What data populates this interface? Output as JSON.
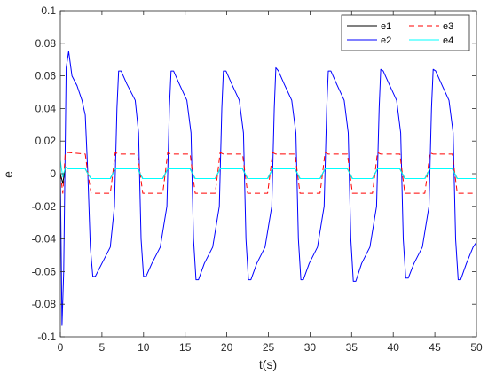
{
  "chart_data": {
    "type": "line",
    "title": "",
    "xlabel": "t(s)",
    "ylabel": "e",
    "xlim": [
      0,
      50
    ],
    "ylim": [
      -0.1,
      0.1
    ],
    "xticks": [
      "0",
      "5",
      "10",
      "15",
      "20",
      "25",
      "30",
      "35",
      "40",
      "45",
      "50"
    ],
    "yticks": [
      "-0.1",
      "-0.08",
      "-0.06",
      "-0.04",
      "-0.02",
      "0",
      "0.02",
      "0.04",
      "0.06",
      "0.08",
      "0.1"
    ],
    "grid": false,
    "legend_position": "top-right",
    "period_s": 6.28,
    "series": [
      {
        "name": "e1",
        "color": "#000000",
        "style": "solid",
        "x": [
          0,
          0.3,
          0.6,
          1.0,
          3.0,
          3.3,
          3.7,
          4.2,
          6.0,
          6.3,
          6.6,
          7.0,
          9.3,
          9.6,
          9.9,
          10.3,
          12.3,
          12.6,
          12.9,
          13.3,
          15.6,
          15.9,
          16.2,
          16.6,
          18.6,
          18.9,
          19.2,
          19.6,
          21.9,
          22.2,
          22.5,
          22.9,
          24.9,
          25.2,
          25.5,
          25.9,
          28.2,
          28.5,
          28.8,
          29.2,
          31.2,
          31.5,
          31.8,
          32.2,
          34.5,
          34.8,
          35.1,
          35.5,
          37.5,
          37.8,
          38.1,
          38.5,
          40.8,
          41.1,
          41.4,
          41.8,
          43.8,
          44.1,
          44.4,
          44.8,
          47.1,
          47.4,
          47.7,
          48.1,
          50
        ],
        "y": [
          0,
          -0.006,
          0.004,
          0.003,
          0.003,
          0.0,
          -0.003,
          -0.003,
          -0.003,
          0.0,
          0.003,
          0.003,
          0.003,
          0.0,
          -0.003,
          -0.003,
          -0.003,
          0.0,
          0.003,
          0.003,
          0.003,
          0.0,
          -0.003,
          -0.003,
          -0.003,
          0.0,
          0.003,
          0.003,
          0.003,
          0.0,
          -0.003,
          -0.003,
          -0.003,
          0.0,
          0.003,
          0.003,
          0.003,
          0.0,
          -0.003,
          -0.003,
          -0.003,
          0.0,
          0.003,
          0.003,
          0.003,
          0.0,
          -0.003,
          -0.003,
          -0.003,
          0.0,
          0.003,
          0.003,
          0.003,
          0.0,
          -0.003,
          -0.003,
          -0.003,
          0.0,
          0.003,
          0.003,
          0.003,
          0.0,
          -0.003,
          -0.003,
          -0.003
        ]
      },
      {
        "name": "e2",
        "color": "#0000ff",
        "style": "solid",
        "x": [
          0,
          0.2,
          0.4,
          0.7,
          1.0,
          1.4,
          2.0,
          2.6,
          3.0,
          3.3,
          3.6,
          3.9,
          4.2,
          5.0,
          6.0,
          6.5,
          6.8,
          7.0,
          7.3,
          8.0,
          9.0,
          9.4,
          9.7,
          10.0,
          10.3,
          11.0,
          12.0,
          12.8,
          13.1,
          13.3,
          13.6,
          14.3,
          15.2,
          15.7,
          16.0,
          16.3,
          16.6,
          17.3,
          18.3,
          19.1,
          19.4,
          19.6,
          19.9,
          20.6,
          21.5,
          22.0,
          22.3,
          22.6,
          22.9,
          23.6,
          24.6,
          25.4,
          25.7,
          25.9,
          26.2,
          26.9,
          27.8,
          28.3,
          28.6,
          28.9,
          29.2,
          29.9,
          30.9,
          31.7,
          32.0,
          32.2,
          32.5,
          33.2,
          34.1,
          34.6,
          34.9,
          35.2,
          35.5,
          36.2,
          37.2,
          38.0,
          38.3,
          38.5,
          38.8,
          39.5,
          40.4,
          40.9,
          41.2,
          41.5,
          41.8,
          42.5,
          43.5,
          44.3,
          44.6,
          44.8,
          45.1,
          45.8,
          46.7,
          47.2,
          47.5,
          47.8,
          48.1,
          48.8,
          49.6,
          50
        ],
        "y": [
          0,
          -0.093,
          -0.06,
          0.065,
          0.075,
          0.06,
          0.054,
          0.045,
          0.036,
          0.0,
          -0.045,
          -0.063,
          -0.063,
          -0.055,
          -0.045,
          -0.02,
          0.04,
          0.063,
          0.063,
          0.055,
          0.045,
          0.025,
          -0.04,
          -0.063,
          -0.063,
          -0.055,
          -0.045,
          -0.02,
          0.04,
          0.063,
          0.063,
          0.055,
          0.045,
          0.025,
          -0.04,
          -0.065,
          -0.065,
          -0.055,
          -0.045,
          -0.02,
          0.04,
          0.063,
          0.063,
          0.055,
          0.045,
          0.025,
          -0.04,
          -0.065,
          -0.065,
          -0.055,
          -0.045,
          -0.02,
          0.04,
          0.065,
          0.063,
          0.055,
          0.045,
          0.025,
          -0.04,
          -0.065,
          -0.065,
          -0.055,
          -0.045,
          -0.02,
          0.04,
          0.063,
          0.063,
          0.055,
          0.045,
          0.025,
          -0.04,
          -0.066,
          -0.066,
          -0.055,
          -0.045,
          -0.02,
          0.04,
          0.064,
          0.063,
          0.055,
          0.045,
          0.025,
          -0.04,
          -0.064,
          -0.064,
          -0.055,
          -0.045,
          -0.02,
          0.04,
          0.064,
          0.063,
          0.055,
          0.045,
          0.025,
          -0.04,
          -0.065,
          -0.065,
          -0.055,
          -0.045,
          -0.042
        ]
      },
      {
        "name": "e3",
        "color": "#ff0000",
        "style": "dashed",
        "x": [
          0,
          0.3,
          0.6,
          1.0,
          3.0,
          3.3,
          3.7,
          4.2,
          6.0,
          6.3,
          6.6,
          7.0,
          9.3,
          9.6,
          9.9,
          10.3,
          12.3,
          12.6,
          12.9,
          13.3,
          15.6,
          15.9,
          16.2,
          16.6,
          18.6,
          18.9,
          19.2,
          19.6,
          21.9,
          22.2,
          22.5,
          22.9,
          24.9,
          25.2,
          25.5,
          25.9,
          28.2,
          28.5,
          28.8,
          29.2,
          31.2,
          31.5,
          31.8,
          32.2,
          34.5,
          34.8,
          35.1,
          35.5,
          37.5,
          37.8,
          38.1,
          38.5,
          40.8,
          41.1,
          41.4,
          41.8,
          43.8,
          44.1,
          44.4,
          44.8,
          47.1,
          47.4,
          47.7,
          48.1,
          50
        ],
        "y": [
          0,
          -0.012,
          0.013,
          0.013,
          0.012,
          0.0,
          -0.012,
          -0.012,
          -0.012,
          0.0,
          0.013,
          0.012,
          0.012,
          0.0,
          -0.012,
          -0.012,
          -0.012,
          0.0,
          0.013,
          0.012,
          0.012,
          0.0,
          -0.012,
          -0.012,
          -0.012,
          0.0,
          0.013,
          0.012,
          0.012,
          0.0,
          -0.012,
          -0.012,
          -0.012,
          0.0,
          0.013,
          0.012,
          0.012,
          0.0,
          -0.012,
          -0.012,
          -0.012,
          0.0,
          0.013,
          0.012,
          0.012,
          0.0,
          -0.012,
          -0.012,
          -0.012,
          0.0,
          0.013,
          0.012,
          0.012,
          0.0,
          -0.012,
          -0.012,
          -0.012,
          0.0,
          0.013,
          0.012,
          0.012,
          0.0,
          -0.012,
          -0.012,
          -0.012
        ]
      },
      {
        "name": "e4",
        "color": "#00ffff",
        "style": "solid",
        "x": [
          0,
          0.3,
          0.6,
          1.0,
          3.0,
          3.3,
          3.7,
          4.2,
          6.0,
          6.3,
          6.6,
          7.0,
          9.3,
          9.6,
          9.9,
          10.3,
          12.3,
          12.6,
          12.9,
          13.3,
          15.6,
          15.9,
          16.2,
          16.6,
          18.6,
          18.9,
          19.2,
          19.6,
          21.9,
          22.2,
          22.5,
          22.9,
          24.9,
          25.2,
          25.5,
          25.9,
          28.2,
          28.5,
          28.8,
          29.2,
          31.2,
          31.5,
          31.8,
          32.2,
          34.5,
          34.8,
          35.1,
          35.5,
          37.5,
          37.8,
          38.1,
          38.5,
          40.8,
          41.1,
          41.4,
          41.8,
          43.8,
          44.1,
          44.4,
          44.8,
          47.1,
          47.4,
          47.7,
          48.1,
          50
        ],
        "y": [
          0.008,
          -0.002,
          0.004,
          0.003,
          0.003,
          0.0,
          -0.003,
          -0.003,
          -0.003,
          0.0,
          0.003,
          0.003,
          0.003,
          0.0,
          -0.003,
          -0.003,
          -0.003,
          0.0,
          0.003,
          0.003,
          0.003,
          0.0,
          -0.003,
          -0.003,
          -0.003,
          0.0,
          0.003,
          0.003,
          0.003,
          0.0,
          -0.003,
          -0.003,
          -0.003,
          0.0,
          0.003,
          0.003,
          0.003,
          0.0,
          -0.003,
          -0.003,
          -0.003,
          0.0,
          0.003,
          0.003,
          0.003,
          0.0,
          -0.003,
          -0.003,
          -0.003,
          0.0,
          0.003,
          0.003,
          0.003,
          0.0,
          -0.003,
          -0.003,
          -0.003,
          0.0,
          0.003,
          0.003,
          0.003,
          0.0,
          -0.003,
          -0.003,
          -0.003
        ]
      }
    ]
  }
}
